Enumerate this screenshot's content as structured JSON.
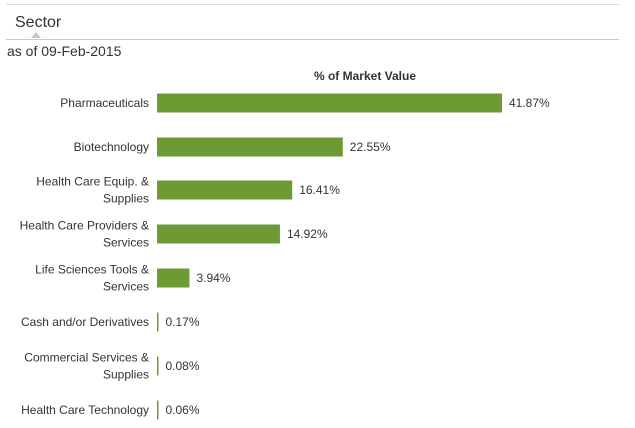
{
  "header": {
    "title": "Sector"
  },
  "as_of": "as of 09-Feb-2015",
  "colors": {
    "bar": "#6e9a34",
    "text": "#333333"
  },
  "chart_data": {
    "type": "bar",
    "orientation": "horizontal",
    "title": "% of Market Value",
    "categories": [
      [
        "Pharmaceuticals"
      ],
      [
        "Biotechnology"
      ],
      [
        "Health Care Equip. &",
        "Supplies"
      ],
      [
        "Health Care Providers &",
        "Services"
      ],
      [
        "Life Sciences Tools &",
        "Services"
      ],
      [
        "Cash and/or Derivatives"
      ],
      [
        "Commercial Services &",
        "Supplies"
      ],
      [
        "Health Care Technology"
      ]
    ],
    "values": [
      41.87,
      22.55,
      16.41,
      14.92,
      3.94,
      0.17,
      0.08,
      0.06
    ],
    "value_labels": [
      "41.87%",
      "22.55%",
      "16.41%",
      "14.92%",
      "3.94%",
      "0.17%",
      "0.08%",
      "0.06%"
    ],
    "xlim": [
      0,
      41.87
    ],
    "grid": false,
    "legend": "none"
  }
}
